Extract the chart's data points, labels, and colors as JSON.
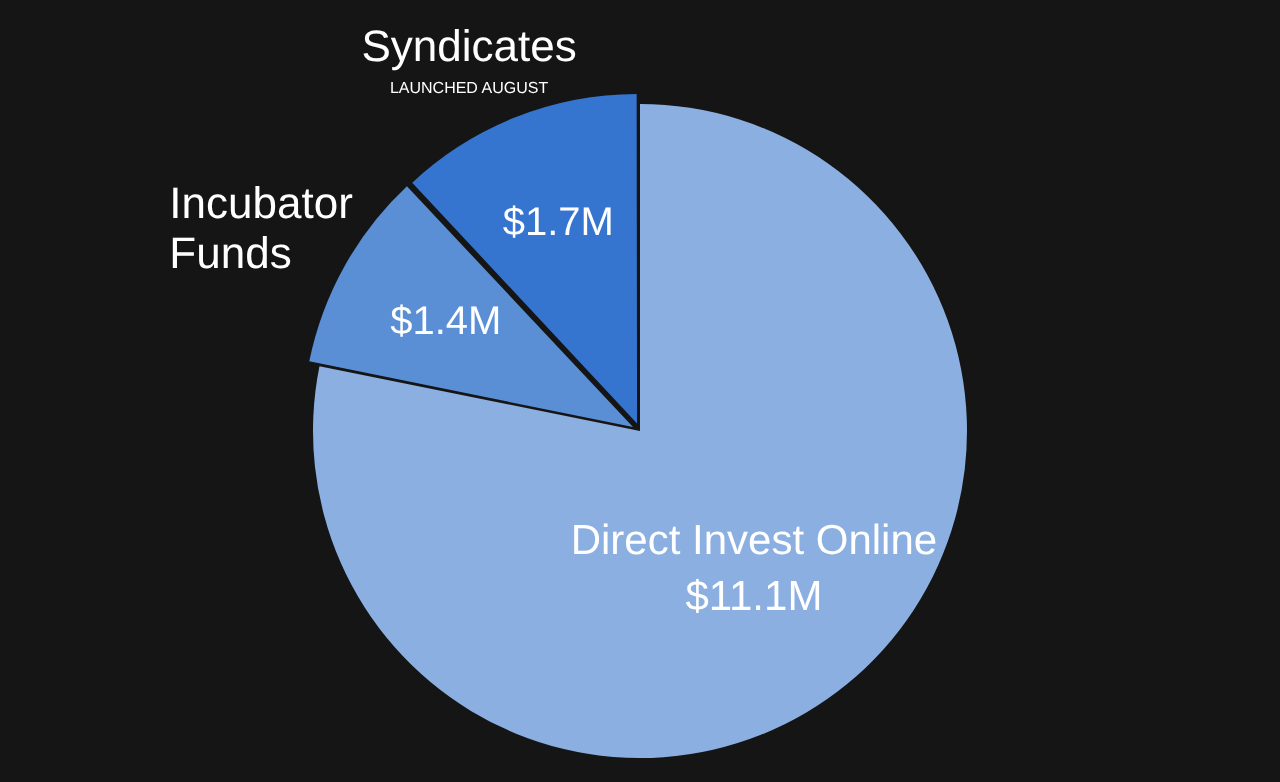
{
  "chart_data": {
    "type": "pie",
    "categories": [
      "Direct Invest Online",
      "Incubator Funds",
      "Syndicates"
    ],
    "values": [
      11.1,
      1.4,
      1.7
    ],
    "colors": [
      "#8aafe0",
      "#5a8fd6",
      "#3574cf"
    ],
    "value_labels": [
      "$11.1M",
      "$1.4M",
      "$1.7M"
    ],
    "annotations": [
      {
        "text": "LAUNCHED AUGUST",
        "x": "Syndicates"
      }
    ],
    "legend": false
  }
}
